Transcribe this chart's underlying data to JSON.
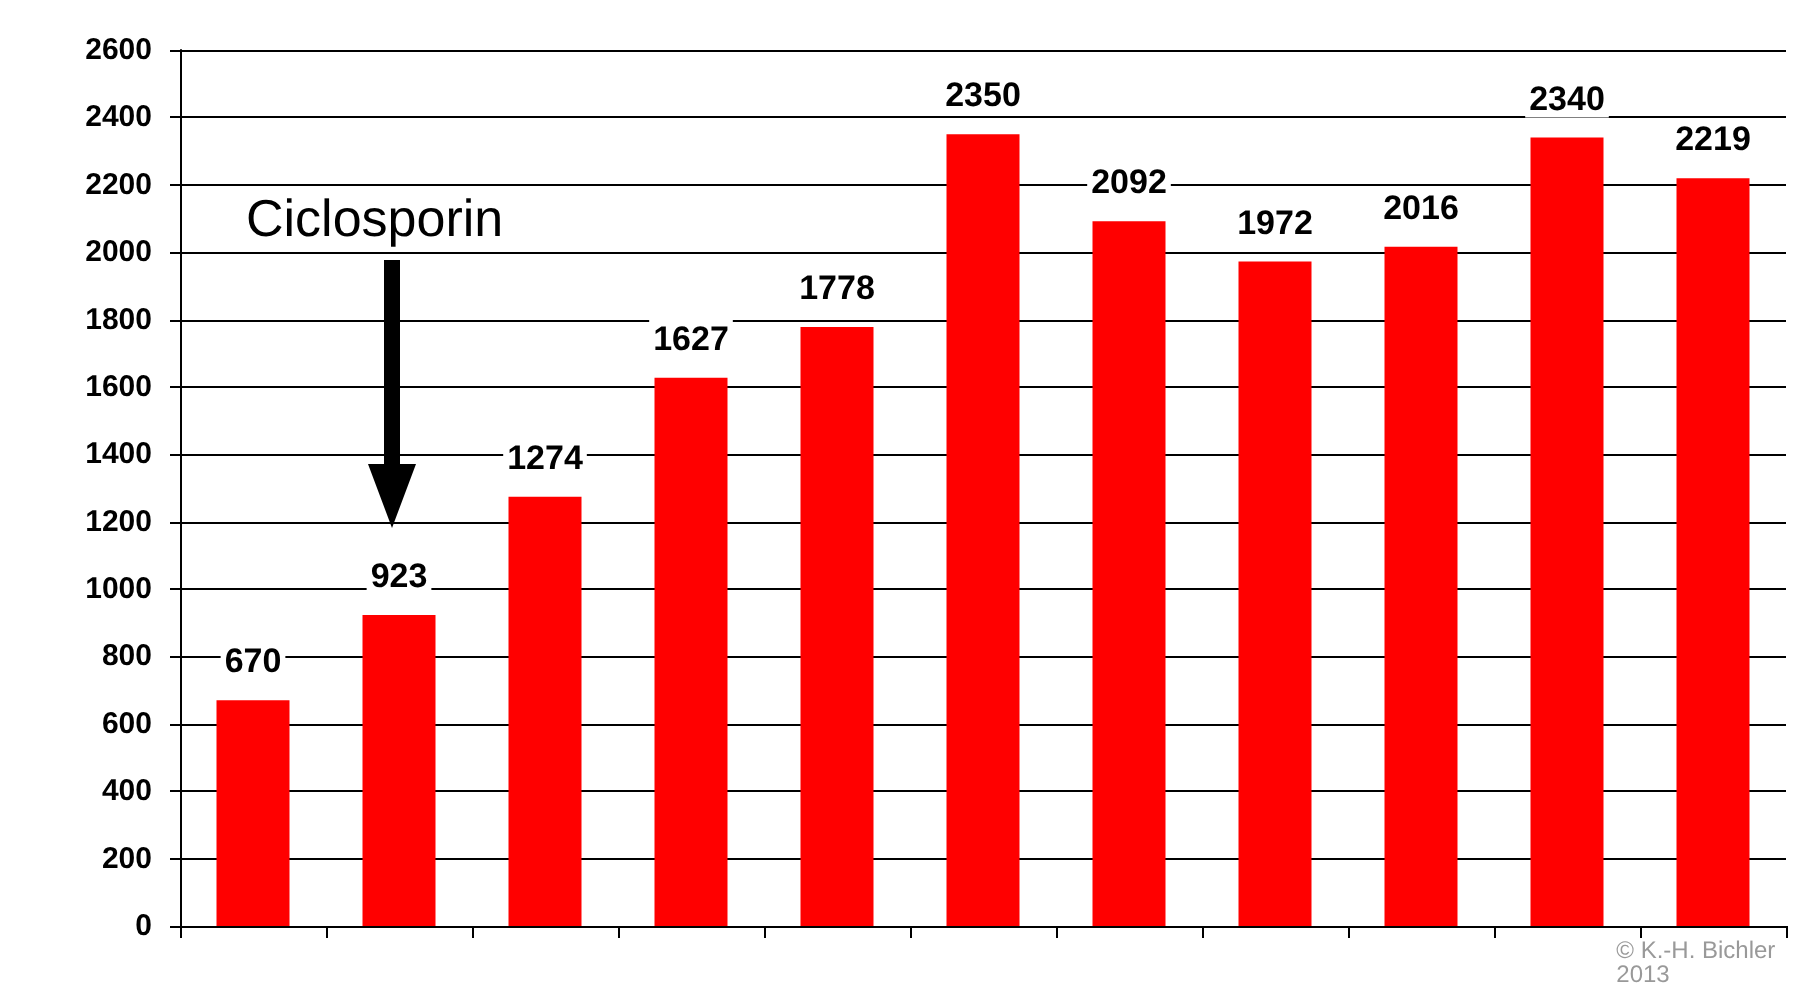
{
  "chart_data": {
    "type": "bar",
    "categories": [
      null,
      null,
      null,
      null,
      null,
      null,
      null,
      null,
      null,
      null,
      null
    ],
    "values": [
      670,
      923,
      1274,
      1627,
      1778,
      2350,
      2092,
      1972,
      2016,
      2340,
      2219
    ],
    "color": "#ff0000",
    "ylim": [
      0,
      2600
    ],
    "yticks": [
      0,
      200,
      400,
      600,
      800,
      1000,
      1200,
      1400,
      1600,
      1800,
      2000,
      2200,
      2400,
      2600
    ],
    "grid": "y",
    "data_labels": true,
    "annotations": [
      "Ciclosporin",
      "© K.-H. Bichler 2013"
    ]
  }
}
